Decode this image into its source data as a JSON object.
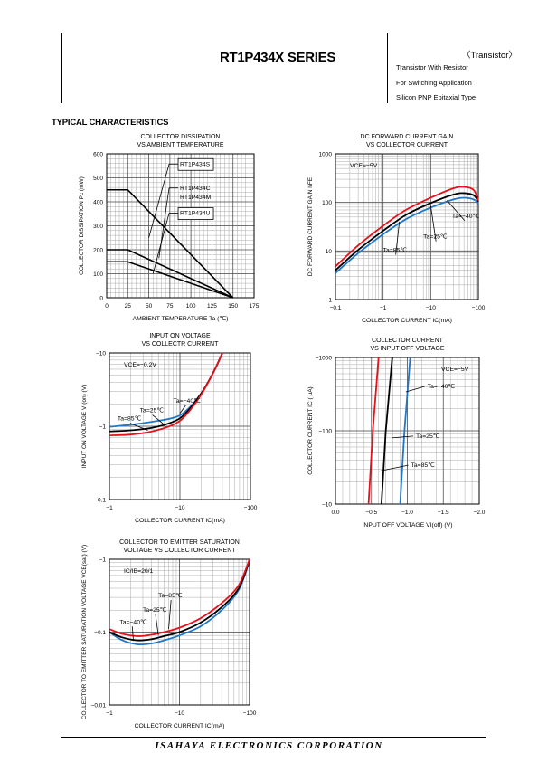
{
  "header": {
    "series_title": "RT1P434X SERIES",
    "category": "〈Transistor〉",
    "subtitles": [
      "Transistor With Resistor",
      "For Switching Application",
      "Silicon PNP Epitaxial Type"
    ]
  },
  "section_title": "TYPICAL CHARACTERISTICS",
  "footer": {
    "company": "ISAHAYA  ELECTRONICS  CORPORATION"
  },
  "colors": {
    "ta_minus40": "#1f77c8",
    "ta_25": "#000000",
    "ta_85": "#e8101a",
    "grid": "#aaaaaa"
  },
  "chart_data": [
    {
      "id": "collector-dissipation",
      "type": "line",
      "title": [
        "COLLECTOR DISSIPATION",
        "VS AMBIENT TEMPERATURE"
      ],
      "xlabel": "AMBIENT TEMPERATURE Ta (℃)",
      "ylabel": "COLLECTOR DISSIPATION Pc (mW)",
      "xscale": "linear",
      "yscale": "linear",
      "xlim": [
        0,
        175
      ],
      "ylim": [
        0,
        600
      ],
      "xticks": [
        0,
        25,
        50,
        75,
        100,
        125,
        150,
        175
      ],
      "yticks": [
        0,
        100,
        200,
        300,
        400,
        500,
        600
      ],
      "xtick_labels": [
        "0",
        "25",
        "50",
        "75",
        "100",
        "125",
        "150",
        "175"
      ],
      "ytick_labels": [
        "0",
        "100",
        "200",
        "300",
        "400",
        "500",
        "600"
      ],
      "series": [
        {
          "name": "RT1P434S",
          "color": "#000000",
          "x": [
            0,
            25,
            150
          ],
          "y": [
            450,
            450,
            0
          ]
        },
        {
          "name": "RT1P434C RT1P434M",
          "color": "#000000",
          "x": [
            0,
            25,
            150
          ],
          "y": [
            200,
            200,
            0
          ]
        },
        {
          "name": "RT1P434U",
          "color": "#000000",
          "x": [
            0,
            25,
            150
          ],
          "y": [
            150,
            150,
            0
          ]
        }
      ],
      "annotations": [
        {
          "lines": [
            "RT1P434S"
          ],
          "box": true,
          "x": 87,
          "y": 550,
          "ax": 50,
          "ay": 250
        },
        {
          "lines": [
            "RT1P434C",
            "RT1P434M"
          ],
          "box": false,
          "x": 87,
          "y": 450,
          "ax": 62,
          "ay": 165
        },
        {
          "lines": [
            "RT1P434U"
          ],
          "box": true,
          "x": 87,
          "y": 345,
          "ax": 55,
          "ay": 100
        }
      ]
    },
    {
      "id": "dc-current-gain",
      "type": "line",
      "title": [
        "DC FORWARD CURRENT GAIN",
        "VS COLLECTOR CURRENT"
      ],
      "xlabel": "COLLECTOR CURRENT  IC(mA)",
      "ylabel": "DC FORWARD CURRENT GAIN hFE",
      "xscale": "log",
      "yscale": "log",
      "xlim": [
        0.1,
        100
      ],
      "ylim": [
        1,
        1000
      ],
      "xticks": [
        0.1,
        1,
        10,
        100
      ],
      "yticks": [
        1,
        10,
        100,
        1000
      ],
      "xtick_labels": [
        "−0.1",
        "−1",
        "−10",
        "−100"
      ],
      "ytick_labels": [
        "1",
        "10",
        "100",
        "1000"
      ],
      "condition": "VCE=−5V",
      "series": [
        {
          "name": "Ta=−40℃",
          "color": "#1f77c8",
          "x": [
            0.1,
            0.3,
            1,
            3,
            10,
            30,
            50,
            80,
            100
          ],
          "y": [
            3.5,
            9,
            22,
            45,
            78,
            115,
            125,
            115,
            95
          ]
        },
        {
          "name": "Ta=25℃",
          "color": "#000000",
          "x": [
            0.1,
            0.3,
            1,
            3,
            10,
            30,
            50,
            80,
            100
          ],
          "y": [
            4,
            10.5,
            26,
            55,
            97,
            145,
            155,
            140,
            105
          ]
        },
        {
          "name": "Ta=85℃",
          "color": "#e8101a",
          "x": [
            0.1,
            0.3,
            1,
            3,
            10,
            30,
            50,
            80,
            100
          ],
          "y": [
            4.8,
            13,
            33,
            70,
            125,
            195,
            210,
            180,
            110
          ]
        }
      ],
      "annotations": [
        {
          "lines": [
            "Ta=−40℃"
          ],
          "box": false,
          "x": 28,
          "y": 48,
          "ax": 22,
          "ay": 110
        },
        {
          "lines": [
            "Ta=25℃"
          ],
          "box": false,
          "x": 7,
          "y": 18,
          "ax": 10,
          "ay": 85
        },
        {
          "lines": [
            "Ta=85℃"
          ],
          "box": false,
          "x": 1.0,
          "y": 9.5,
          "ax": 2.2,
          "ay": 40
        }
      ]
    },
    {
      "id": "input-on-voltage",
      "type": "line",
      "title": [
        "INPUT ON VOLTAGE",
        "VS COLLECTR CURRENT"
      ],
      "xlabel": "COLLECTOR CURRENT  IC(mA)",
      "ylabel": "INPUT ON VOLTAGE VI(on) (V)",
      "xscale": "log",
      "yscale": "log",
      "xlim": [
        1,
        100
      ],
      "ylim": [
        0.1,
        10
      ],
      "xticks": [
        1,
        10,
        100
      ],
      "yticks": [
        0.1,
        1,
        10
      ],
      "xtick_labels": [
        "−1",
        "−10",
        "−100"
      ],
      "ytick_labels": [
        "−0.1",
        "−1",
        "−10"
      ],
      "condition": "VCE=−0.2V",
      "series": [
        {
          "name": "Ta=−40℃",
          "color": "#1f77c8",
          "x": [
            1,
            2,
            4,
            8,
            12,
            20,
            30,
            40
          ],
          "y": [
            0.98,
            1.05,
            1.15,
            1.3,
            1.6,
            2.8,
            5.5,
            10
          ]
        },
        {
          "name": "Ta=25℃",
          "color": "#000000",
          "x": [
            1,
            2,
            4,
            8,
            12,
            20,
            30,
            40
          ],
          "y": [
            0.85,
            0.88,
            0.95,
            1.15,
            1.5,
            2.8,
            5.5,
            10
          ]
        },
        {
          "name": "Ta=85℃",
          "color": "#e8101a",
          "x": [
            1,
            2,
            4,
            8,
            12,
            20,
            30,
            40
          ],
          "y": [
            0.75,
            0.77,
            0.85,
            1.05,
            1.4,
            2.7,
            5.5,
            10
          ]
        }
      ],
      "annotations": [
        {
          "lines": [
            "Ta=−40℃"
          ],
          "box": false,
          "x": 8,
          "y": 2.1,
          "ax": 10,
          "ay": 1.5
        },
        {
          "lines": [
            "Ta=25℃"
          ],
          "box": false,
          "x": 2.7,
          "y": 1.55,
          "ax": 6,
          "ay": 1.05
        },
        {
          "lines": [
            "Ta=85℃"
          ],
          "box": false,
          "x": 1.3,
          "y": 1.2,
          "ax": 3.5,
          "ay": 0.88
        }
      ]
    },
    {
      "id": "collector-current-vs-input-off",
      "type": "line",
      "title": [
        "COLLECTOR CURRENT",
        "VS INPUT OFF VOLTAGE"
      ],
      "xlabel": "INPUT OFF VOLTAGE VI(off) (V)",
      "ylabel": "COLLECTOR CURRENT IC ( μA)",
      "xscale": "linear",
      "yscale": "log",
      "xlim": [
        0,
        2
      ],
      "ylim": [
        10,
        1000
      ],
      "xticks": [
        0,
        0.5,
        1,
        1.5,
        2
      ],
      "yticks": [
        10,
        100,
        1000
      ],
      "xtick_labels": [
        "0.0",
        "−0.5",
        "−1.0",
        "−1.5",
        "−2.0"
      ],
      "ytick_labels": [
        "−10",
        "−100",
        "−1000"
      ],
      "condition": "VCE=−5V",
      "series": [
        {
          "name": "Ta=85℃",
          "color": "#e8101a",
          "x": [
            0.46,
            0.52,
            0.6
          ],
          "y": [
            10,
            100,
            1000
          ]
        },
        {
          "name": "Ta=25℃",
          "color": "#000000",
          "x": [
            0.64,
            0.7,
            0.79
          ],
          "y": [
            10,
            100,
            1000
          ]
        },
        {
          "name": "Ta=−40℃",
          "color": "#1f77c8",
          "x": [
            0.9,
            0.96,
            1.04
          ],
          "y": [
            10,
            100,
            1000
          ]
        }
      ],
      "annotations": [
        {
          "lines": [
            "Ta=−40℃"
          ],
          "box": false,
          "x": 1.28,
          "y": 380,
          "ax": 0.98,
          "ay": 340
        },
        {
          "lines": [
            "Ta=25℃"
          ],
          "box": false,
          "x": 1.12,
          "y": 80,
          "ax": 0.78,
          "ay": 80
        },
        {
          "lines": [
            "Ta=85℃"
          ],
          "box": false,
          "x": 1.05,
          "y": 32,
          "ax": 0.6,
          "ay": 28
        }
      ]
    },
    {
      "id": "ce-saturation-voltage",
      "type": "line",
      "title": [
        "COLLECTOR TO EMITTER SATURATION",
        "VOLTAGE VS COLLECTOR CURRENT"
      ],
      "xlabel": "COLLECTOR CURRENT  IC(mA)",
      "ylabel": "COLLECTOR TO EMITTER SATURATION VOLTAGE VCE(sat) (V)",
      "xscale": "log",
      "yscale": "log",
      "xlim": [
        1,
        100
      ],
      "ylim": [
        0.01,
        1
      ],
      "xticks": [
        1,
        10,
        100
      ],
      "yticks": [
        0.01,
        0.1,
        1
      ],
      "xtick_labels": [
        "−1",
        "−10",
        "−100"
      ],
      "ytick_labels": [
        "−0.01",
        "−0.1",
        "−1"
      ],
      "condition": "IC/IB=20/1",
      "series": [
        {
          "name": "Ta=−40℃",
          "color": "#1f77c8",
          "x": [
            1,
            1.5,
            2.5,
            4,
            6,
            10,
            20,
            40,
            70,
            100
          ],
          "y": [
            0.1,
            0.078,
            0.068,
            0.07,
            0.077,
            0.09,
            0.12,
            0.2,
            0.38,
            0.95
          ]
        },
        {
          "name": "Ta=25℃",
          "color": "#000000",
          "x": [
            1,
            1.5,
            2.5,
            4,
            6,
            10,
            20,
            40,
            70,
            100
          ],
          "y": [
            0.1,
            0.085,
            0.077,
            0.08,
            0.088,
            0.1,
            0.135,
            0.22,
            0.4,
            0.98
          ]
        },
        {
          "name": "Ta=85℃",
          "color": "#e8101a",
          "x": [
            1,
            1.5,
            2.5,
            4,
            6,
            10,
            20,
            40,
            70,
            100
          ],
          "y": [
            0.11,
            0.095,
            0.088,
            0.092,
            0.1,
            0.115,
            0.155,
            0.25,
            0.44,
            1.0
          ]
        }
      ],
      "annotations": [
        {
          "lines": [
            "Ta=85℃"
          ],
          "box": false,
          "x": 5,
          "y": 0.3,
          "ax": 7,
          "ay": 0.11
        },
        {
          "lines": [
            "Ta=25℃"
          ],
          "box": false,
          "x": 3,
          "y": 0.19,
          "ax": 5,
          "ay": 0.09
        },
        {
          "lines": [
            "Ta=−40℃"
          ],
          "box": false,
          "x": 1.4,
          "y": 0.13,
          "ax": 2.2,
          "ay": 0.076
        }
      ]
    }
  ]
}
